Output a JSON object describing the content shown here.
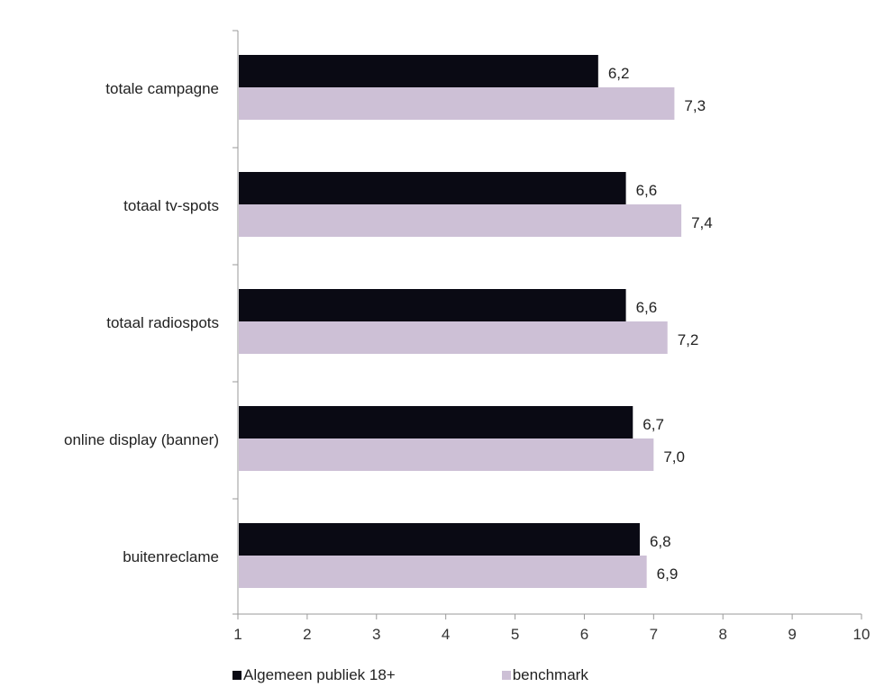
{
  "chart_data": {
    "type": "bar",
    "orientation": "horizontal",
    "categories": [
      "totale campagne",
      "totaal tv-spots",
      "totaal radiospots",
      "online display (banner)",
      "buitenreclame"
    ],
    "series": [
      {
        "name": "Algemeen publiek 18+",
        "color": "#0a0a14",
        "values": [
          6.2,
          6.6,
          6.6,
          6.7,
          6.8
        ],
        "labels": [
          "6,2",
          "6,6",
          "6,6",
          "6,7",
          "6,8"
        ]
      },
      {
        "name": "benchmark",
        "color": "#cdc0d6",
        "values": [
          7.3,
          7.4,
          7.2,
          7.0,
          6.9
        ],
        "labels": [
          "7,3",
          "7,4",
          "7,2",
          "7,0",
          "6,9"
        ]
      }
    ],
    "xlim": [
      1,
      10
    ],
    "xticks": [
      "1",
      "2",
      "3",
      "4",
      "5",
      "6",
      "7",
      "8",
      "9",
      "10"
    ],
    "title": "",
    "xlabel": "",
    "ylabel": "",
    "grid": false,
    "legend_position": "bottom"
  }
}
